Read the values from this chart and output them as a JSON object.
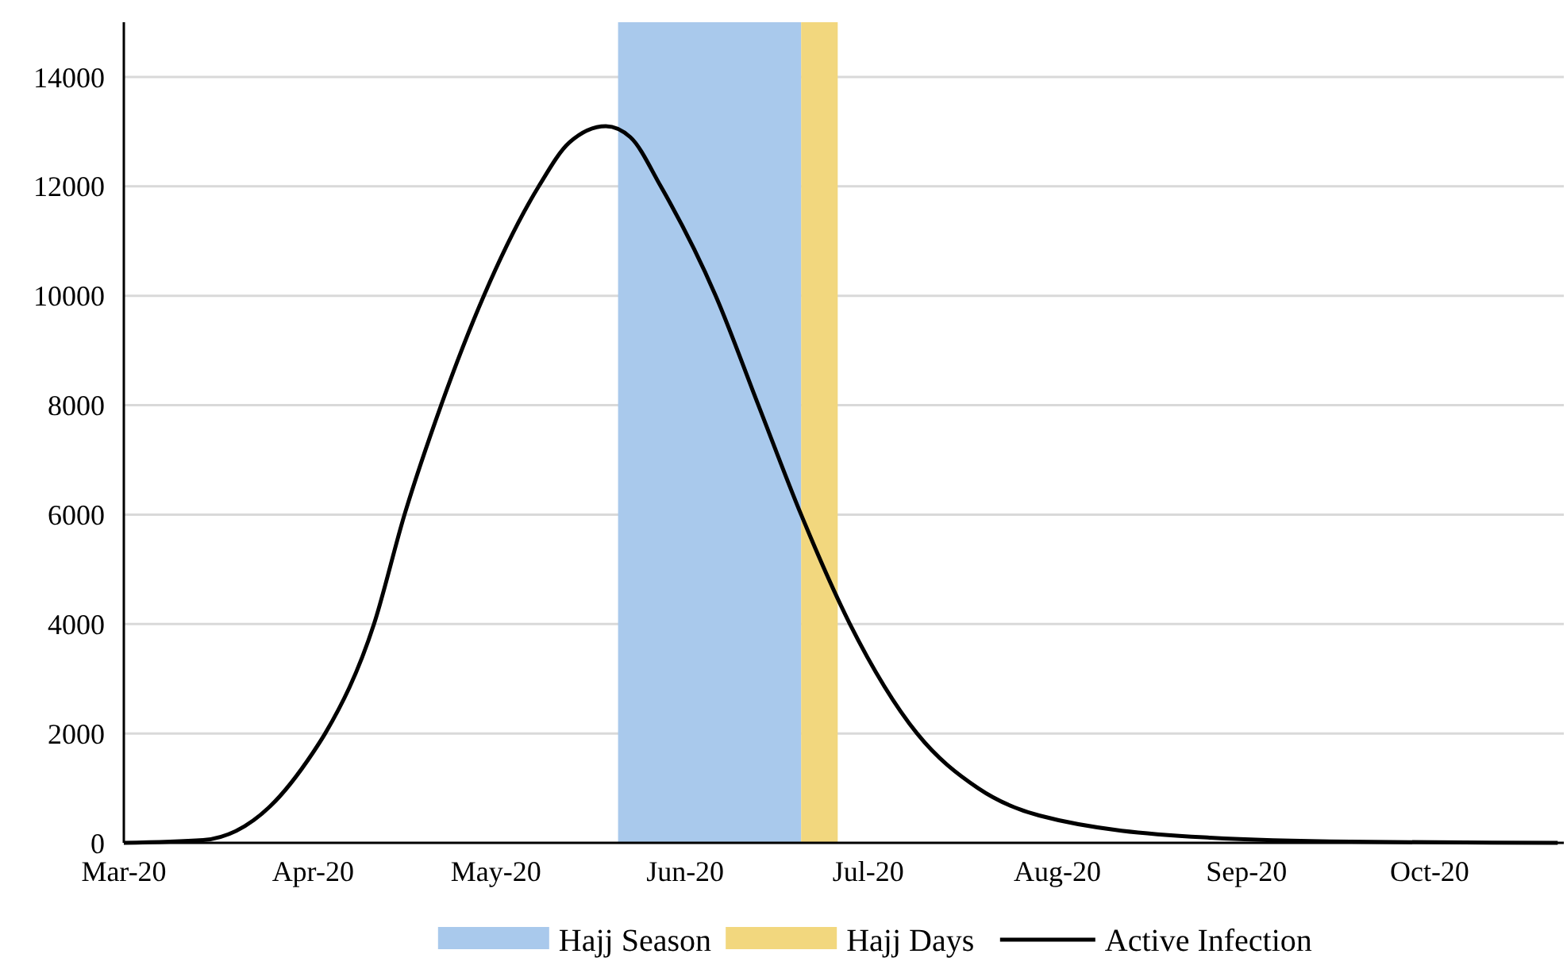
{
  "chart_data": {
    "type": "line",
    "x": [
      "2020-03-01",
      "2020-03-14",
      "2020-03-25",
      "2020-04-01",
      "2020-04-03",
      "2020-04-11",
      "2020-04-16",
      "2020-04-22",
      "2020-04-29",
      "2020-05-08",
      "2020-05-13",
      "2020-05-19",
      "2020-05-23",
      "2020-05-28",
      "2020-06-06",
      "2020-06-13",
      "2020-06-20",
      "2020-06-28",
      "2020-07-09",
      "2020-07-19",
      "2020-07-29",
      "2020-08-25",
      "2020-09-18",
      "2020-10-22"
    ],
    "series": [
      {
        "name": "Active Infection",
        "color": "#000000",
        "values": [
          0,
          50,
          670,
          1650,
          2000,
          4000,
          6000,
          8000,
          10000,
          12000,
          12800,
          13100,
          12900,
          12000,
          10000,
          8000,
          6000,
          4000,
          2000,
          1000,
          500,
          100,
          20,
          0
        ]
      }
    ],
    "xlim": [
      "2020-03-01",
      "2020-10-23"
    ],
    "xticks": [
      {
        "value": "2020-03-01",
        "label": "Mar-20"
      },
      {
        "value": "2020-04-01",
        "label": "Apr-20"
      },
      {
        "value": "2020-05-01",
        "label": "May-20"
      },
      {
        "value": "2020-06-01",
        "label": "Jun-20"
      },
      {
        "value": "2020-07-01",
        "label": "Jul-20"
      },
      {
        "value": "2020-08-01",
        "label": "Aug-20"
      },
      {
        "value": "2020-09-01",
        "label": "Sep-20"
      },
      {
        "value": "2020-10-01",
        "label": "Oct-20"
      }
    ],
    "ylim": [
      0,
      15000
    ],
    "yticks": [
      0,
      2000,
      4000,
      6000,
      8000,
      10000,
      12000,
      14000
    ],
    "bands": [
      {
        "axis": "x",
        "from": "2020-05-21",
        "to": "2020-06-20",
        "label": "Hajj Season",
        "color": "#a9c9ec"
      },
      {
        "axis": "x",
        "from": "2020-06-20",
        "to": "2020-06-26",
        "label": "Hajj Days",
        "color": "#f2d77e"
      }
    ],
    "grid": "y",
    "legend": "bottom",
    "marker": "none",
    "line_style": "solid"
  }
}
